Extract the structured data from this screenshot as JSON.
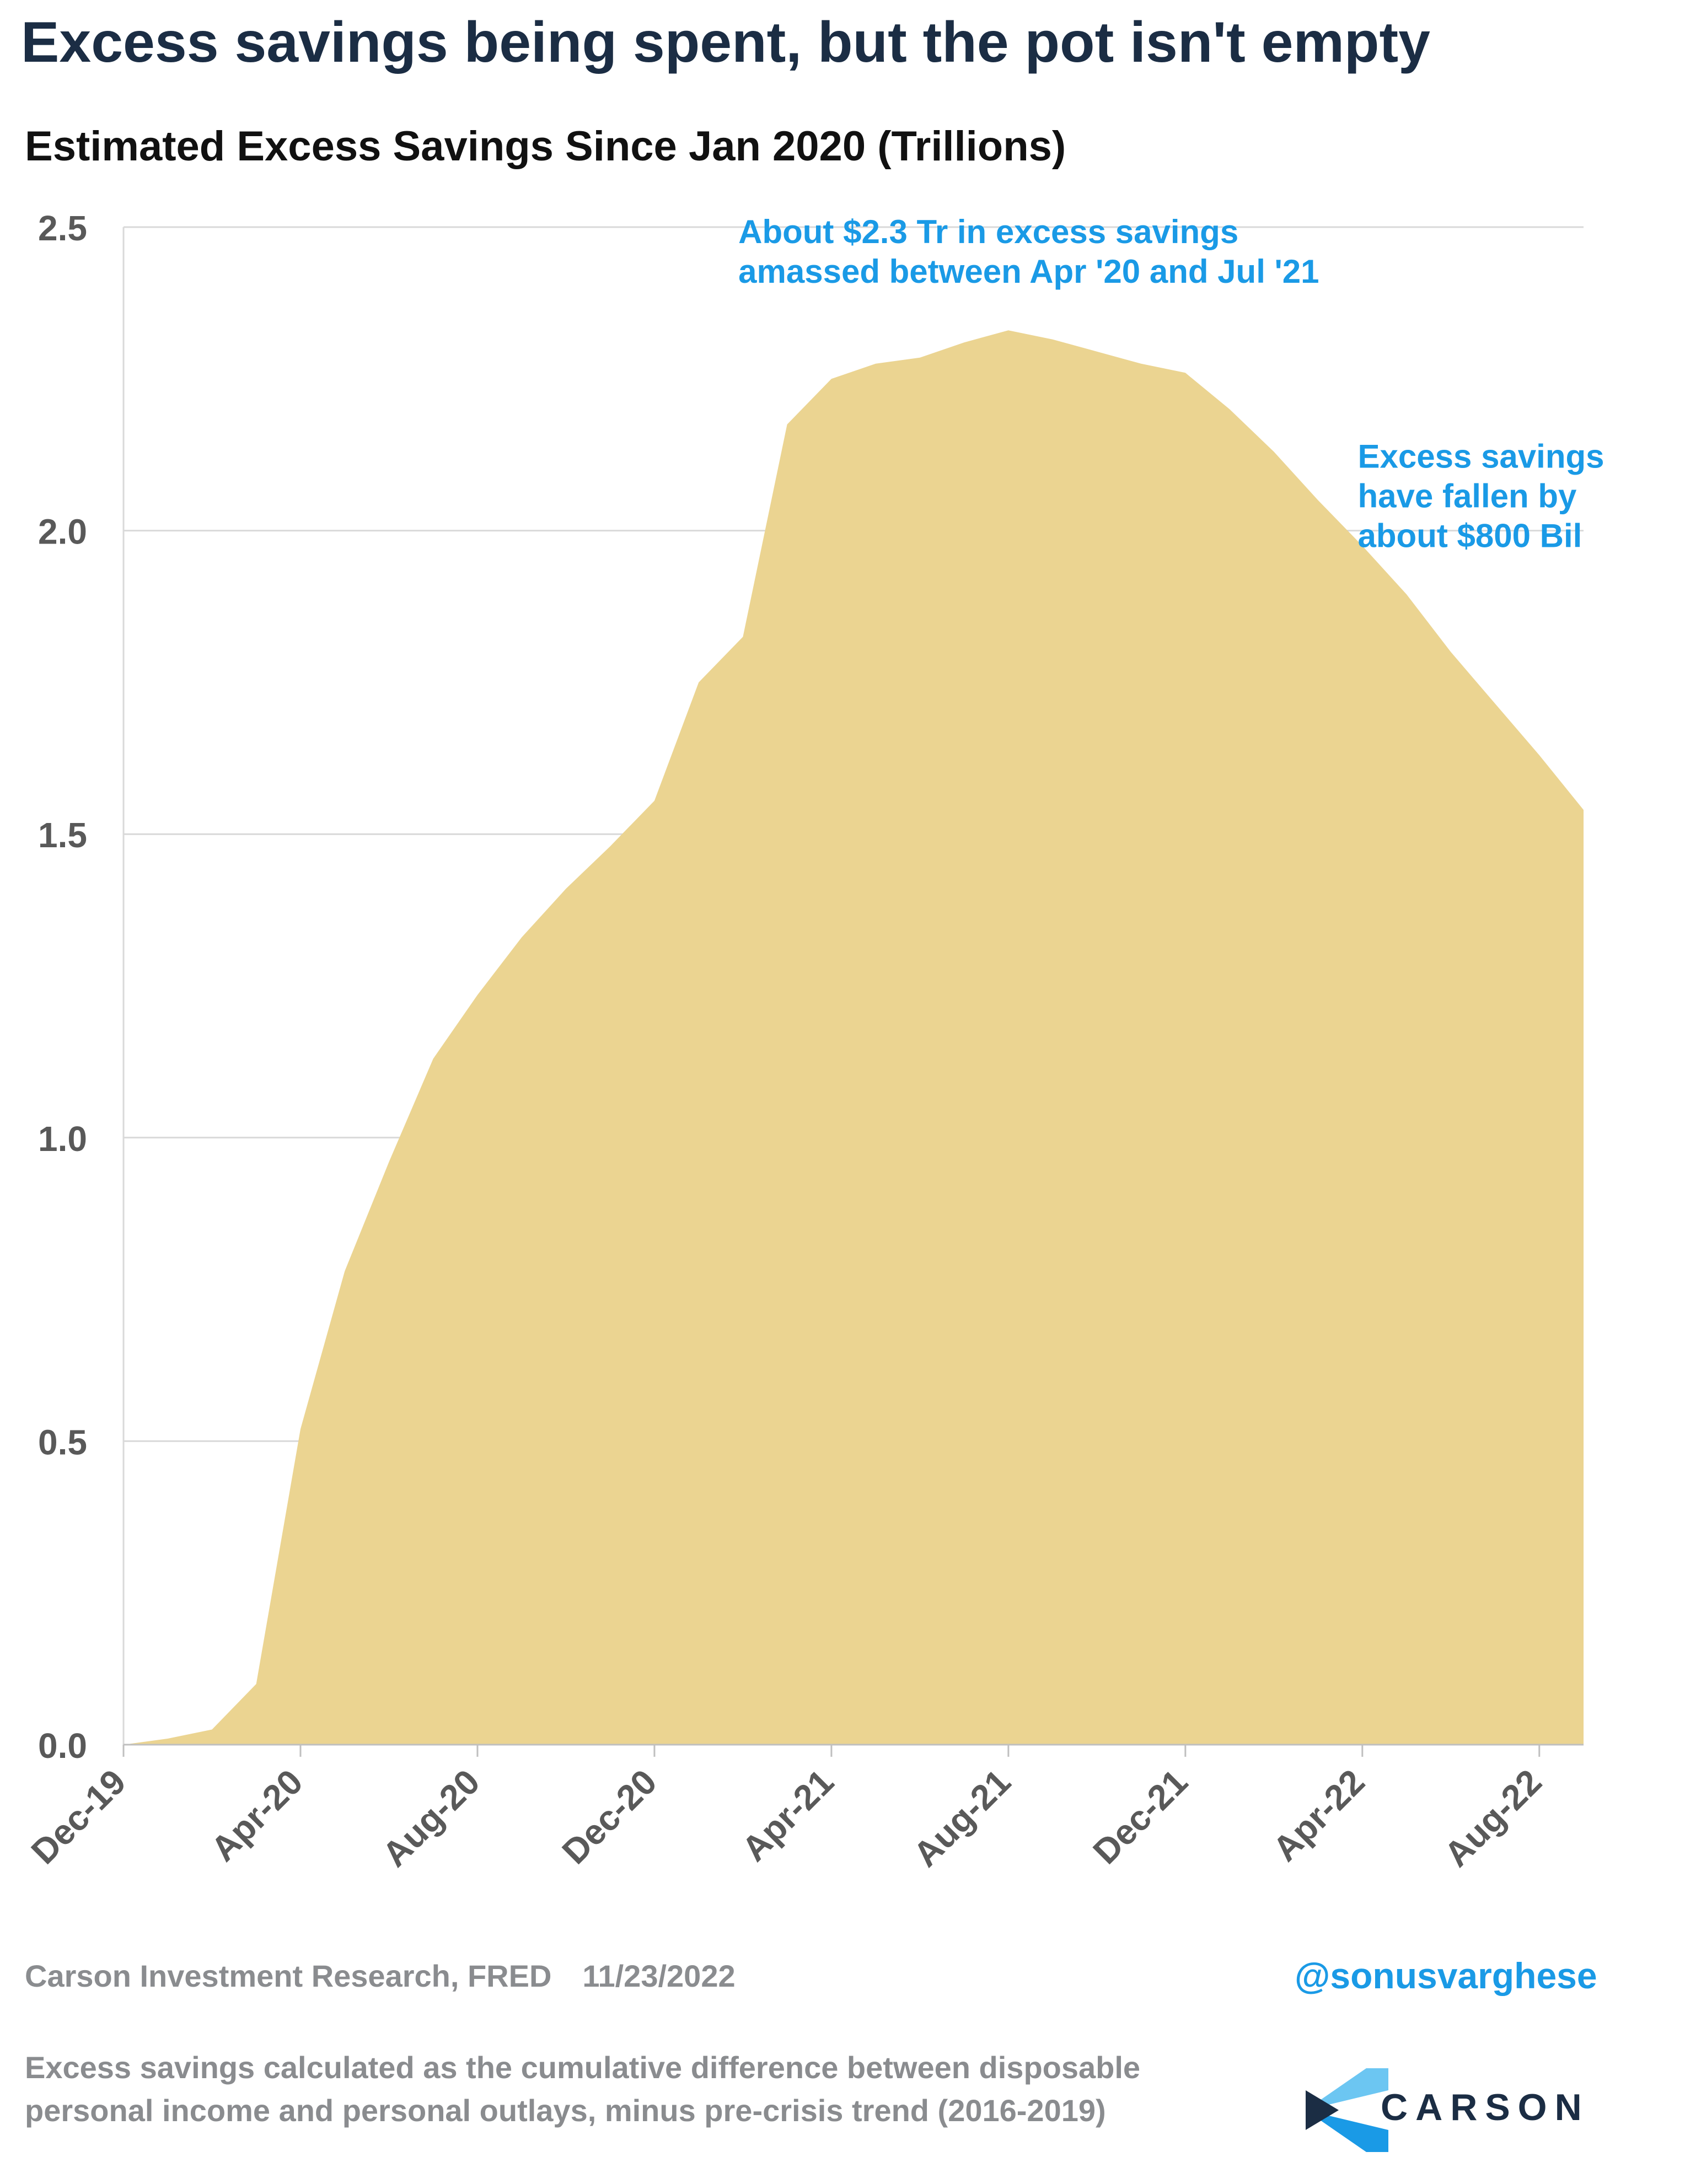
{
  "headline": "Excess savings being spent, but the pot isn't empty",
  "source_text": "Carson Investment Research, FRED",
  "source_date": "11/23/2022",
  "handle": "@sonusvarghese",
  "footnote": "Excess savings calculated as the cumulative difference between disposable personal income and personal outlays, minus pre-crisis trend (2016-2019)",
  "logo_text": "CARSON",
  "colors": {
    "area": "#ebd491",
    "grid": "#d9d9d9",
    "annotation": "#1a9ae6",
    "axis_text": "#595959",
    "headline": "#1b2d44"
  },
  "chart_data": {
    "type": "area",
    "title": "Estimated Excess Savings Since Jan 2020 (Trillions)",
    "x": [
      "Dec-19",
      "Jan-20",
      "Feb-20",
      "Mar-20",
      "Apr-20",
      "May-20",
      "Jun-20",
      "Jul-20",
      "Aug-20",
      "Sep-20",
      "Oct-20",
      "Nov-20",
      "Dec-20",
      "Jan-21",
      "Feb-21",
      "Mar-21",
      "Apr-21",
      "May-21",
      "Jun-21",
      "Jul-21",
      "Aug-21",
      "Sep-21",
      "Oct-21",
      "Nov-21",
      "Dec-21",
      "Jan-22",
      "Feb-22",
      "Mar-22",
      "Apr-22",
      "May-22",
      "Jun-22",
      "Jul-22",
      "Aug-22",
      "Sep-22"
    ],
    "series": [
      {
        "values": [
          0.0,
          0.01,
          0.025,
          0.1,
          0.52,
          0.78,
          0.96,
          1.13,
          1.235,
          1.33,
          1.41,
          1.48,
          1.555,
          1.75,
          1.825,
          2.175,
          2.25,
          2.275,
          2.285,
          2.31,
          2.33,
          2.315,
          2.295,
          2.275,
          2.26,
          2.2,
          2.13,
          2.05,
          1.975,
          1.895,
          1.8,
          1.715,
          1.63,
          1.54
        ]
      }
    ],
    "x_tick_labels": [
      "Dec-19",
      "Apr-20",
      "Aug-20",
      "Dec-20",
      "Apr-21",
      "Aug-21",
      "Dec-21",
      "Apr-22",
      "Aug-22"
    ],
    "y_ticks": [
      "0.0",
      "0.5",
      "1.0",
      "1.5",
      "2.0",
      "2.5"
    ],
    "ylim": [
      0,
      2.5
    ],
    "grid": "horizontal",
    "annotations": [
      {
        "lines": [
          "About  $2.3 Tr in excess savings",
          "amassed between Apr '20 and Jul '21"
        ],
        "at_x": "Jan-21",
        "at_y": 2.45
      },
      {
        "lines": [
          "Excess savings",
          "have fallen by",
          "about $800 Bil"
        ],
        "at_x": "Mar-22",
        "at_y": 2.08
      }
    ]
  }
}
